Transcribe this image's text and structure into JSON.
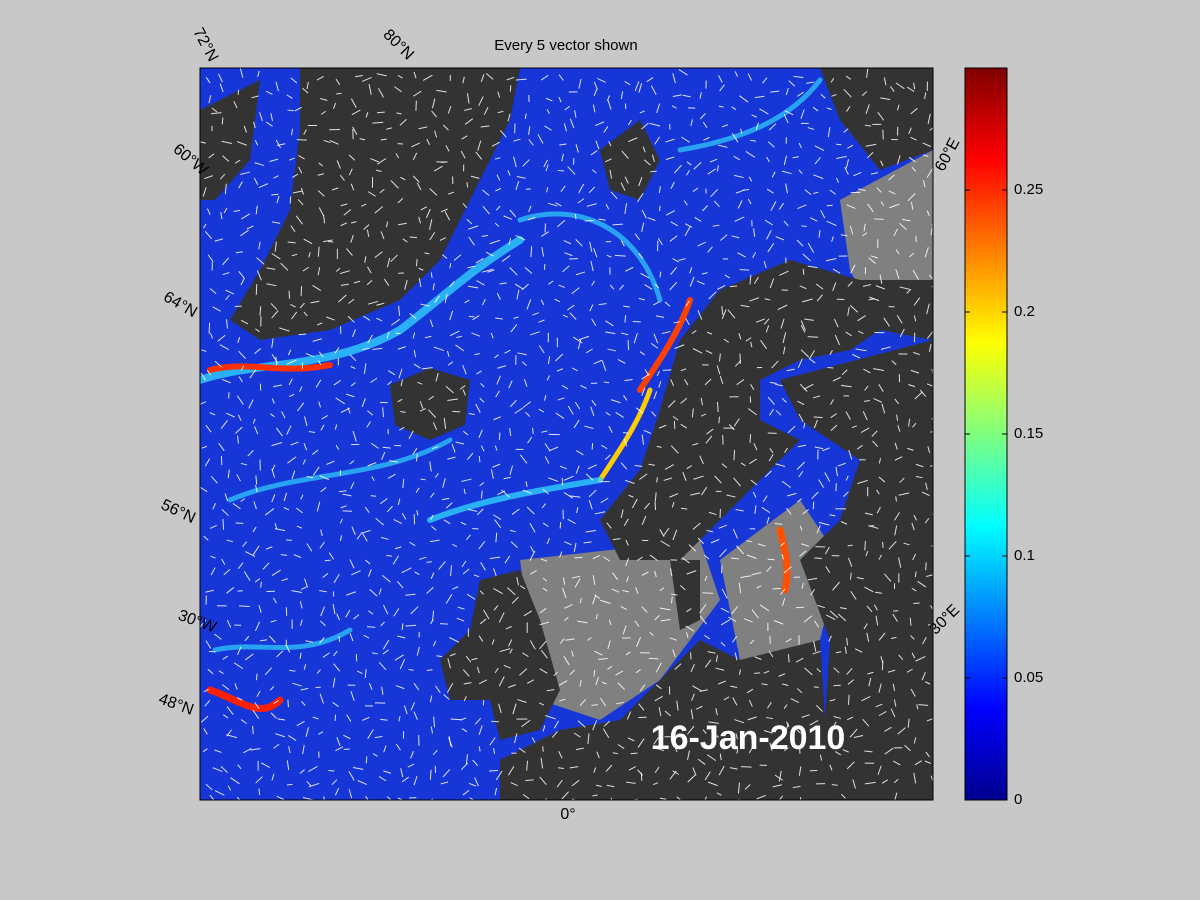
{
  "title": "Every 5 vector shown",
  "date_label": "16-Jan-2010",
  "graticule_labels": [
    "72°N",
    "80°N",
    "60°W",
    "64°N",
    "56°N",
    "30°W",
    "48°N",
    "0°",
    "60°E",
    "30°E"
  ],
  "colorbar": {
    "lim": [
      0,
      0.3
    ],
    "ticks": [
      0,
      0.05,
      0.1,
      0.15,
      0.2,
      0.25
    ]
  }
}
